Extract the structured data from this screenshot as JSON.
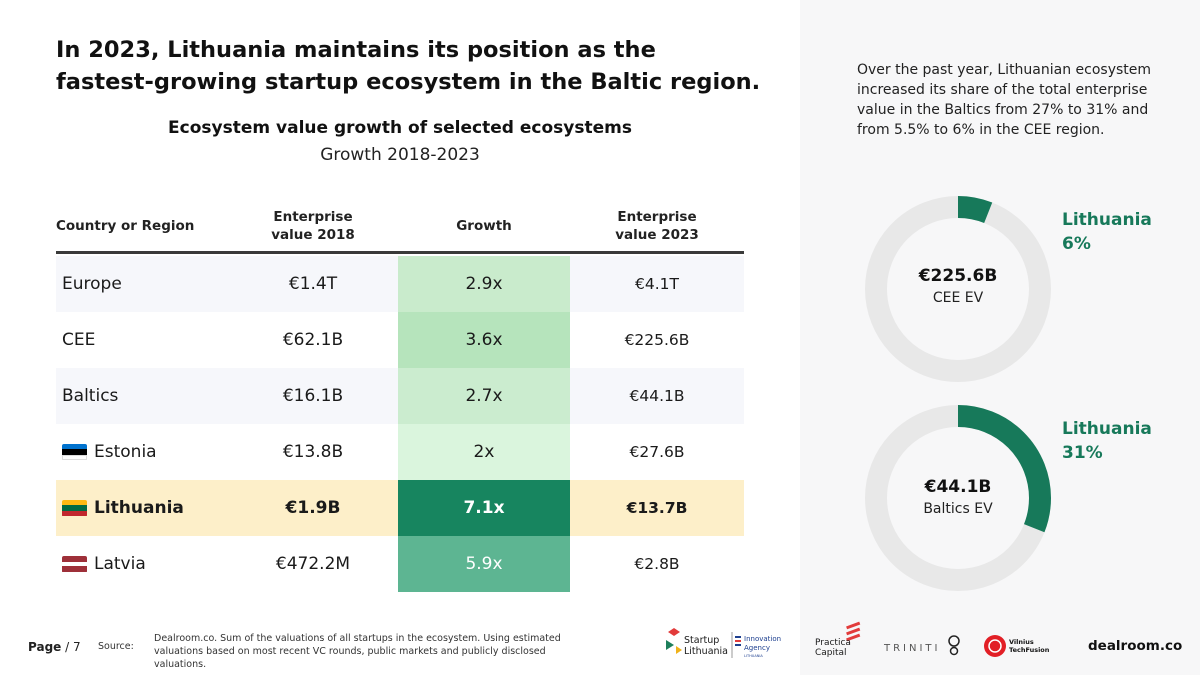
{
  "headline": [
    "In 2023, Lithuania maintains its position as the",
    "fastest-growing startup ecosystem in the Baltic region."
  ],
  "table": {
    "title": "Ecosystem value growth of selected ecosystems",
    "subtitle": "Growth 2018-2023",
    "headers": {
      "country": "Country or Region",
      "ev2018": [
        "Enterprise",
        "value 2018"
      ],
      "growth": "Growth",
      "ev2023": [
        "Enterprise",
        "value 2023"
      ]
    },
    "rows": [
      {
        "name": "Europe",
        "ev2018": "€1.4T",
        "growth": "2.9x",
        "ev2023": "€4.1T",
        "growth_color": "#c9ebcc"
      },
      {
        "name": "CEE",
        "ev2018": "€62.1B",
        "growth": "3.6x",
        "ev2023": "€225.6B",
        "growth_color": "#b6e4bc"
      },
      {
        "name": "Baltics",
        "ev2018": "€16.1B",
        "growth": "2.7x",
        "ev2023": "€44.1B",
        "growth_color": "#cbeccf"
      },
      {
        "name": "Estonia",
        "ev2018": "€13.8B",
        "growth": "2x",
        "ev2023": "€27.6B",
        "growth_color": "#daf5dd"
      },
      {
        "name": "Lithuania",
        "ev2018": "€1.9B",
        "growth": "7.1x",
        "ev2023": "€13.7B",
        "growth_color": "#17855f"
      },
      {
        "name": "Latvia",
        "ev2018": "€472.2M",
        "growth": "5.9x",
        "ev2023": "€2.8B",
        "growth_color": "#5db592"
      }
    ]
  },
  "footer": {
    "page_label": "Page",
    "page_num": "/ 7",
    "source_label": "Source:",
    "source_text": "Dealroom.co. Sum of the valuations of all startups in the ecosystem. Using estimated valuations based on most recent VC rounds, public markets and publicly disclosed valuations."
  },
  "side": {
    "description": "Over the past year, Lithuanian ecosystem increased its share of the total enterprise value in the Baltics from 27% to 31% and from 5.5% to 6% in the CEE region.",
    "donuts": [
      {
        "value": "€225.6B",
        "label": "CEE EV",
        "share_name": "Lithuania",
        "share_text": "6%",
        "share": 0.06
      },
      {
        "value": "€44.1B",
        "label": "Baltics EV",
        "share_name": "Lithuania",
        "share_text": "31%",
        "share": 0.31
      }
    ]
  },
  "logos": {
    "startup_lithuania": [
      "Startup",
      "Lithuania"
    ],
    "innovation_agency": [
      "Innovation",
      "Agency",
      "LITHUANIA"
    ],
    "practica": [
      "Practica",
      "Capital"
    ],
    "triniti": "TRINITI",
    "vilnius": [
      "Vilnius",
      "TechFusion"
    ],
    "dealroom": "dealroom.co"
  },
  "colors": {
    "accent": "#17795a",
    "donut_track": "#e8e8e8",
    "highlight_row": "#fdefc9"
  }
}
